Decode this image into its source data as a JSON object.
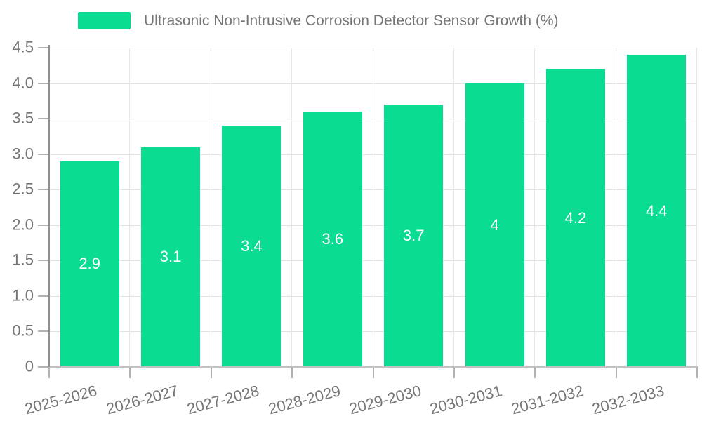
{
  "chart_data": {
    "type": "bar",
    "legend_label": "Ultrasonic Non-Intrusive Corrosion Detector Sensor Growth (%)",
    "legend_position": "top",
    "categories": [
      "2025-2026",
      "2026-2027",
      "2027-2028",
      "2028-2029",
      "2029-2030",
      "2030-2031",
      "2031-2032",
      "2032-2033"
    ],
    "values": [
      2.9,
      3.1,
      3.4,
      3.6,
      3.7,
      4,
      4.2,
      4.4
    ],
    "value_labels": [
      "2.9",
      "3.1",
      "3.4",
      "3.6",
      "3.7",
      "4",
      "4.2",
      "4.4"
    ],
    "xlabel": "",
    "ylabel": "",
    "ylim": [
      0,
      4.5
    ],
    "ytick_values": [
      0,
      0.5,
      1,
      1.5,
      2,
      2.5,
      3,
      3.5,
      4,
      4.5
    ],
    "ytick_labels": [
      "0",
      "0.5",
      "1.0",
      "1.5",
      "2.0",
      "2.5",
      "3.0",
      "3.5",
      "4.0",
      "4.5"
    ],
    "grid": true,
    "colors": {
      "bar": "#0adc91",
      "bar_value_text": "#ffffff",
      "axis_text": "#757575",
      "legend_text": "#757575",
      "gridline": "#e2e2e2",
      "axis_line": "#8f8f8f",
      "tick_mark": "#b2b2b2"
    }
  }
}
